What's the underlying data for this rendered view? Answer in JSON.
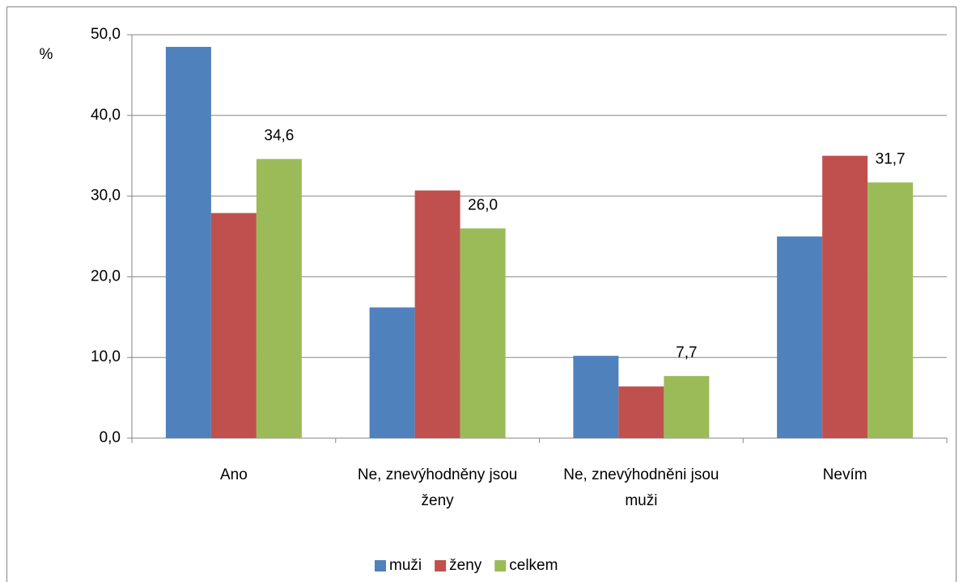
{
  "chart_data": {
    "type": "bar",
    "y_unit": "%",
    "categories": [
      "Ano",
      "Ne, znevýhodněny jsou ženy",
      "Ne, znevýhodněni jsou muži",
      "Nevím"
    ],
    "series": [
      {
        "name": "muži",
        "color": "#4f81bd",
        "values": [
          48.5,
          16.2,
          10.2,
          25.0
        ]
      },
      {
        "name": "ženy",
        "color": "#c0504d",
        "values": [
          27.9,
          30.7,
          6.4,
          35.0
        ]
      },
      {
        "name": "celkem",
        "color": "#9bbb59",
        "values": [
          34.6,
          26.0,
          7.7,
          31.7
        ],
        "value_labels": [
          "34,6",
          "26,0",
          "7,7",
          "31,7"
        ]
      }
    ],
    "ylim": [
      0,
      50
    ],
    "yticks": [
      {
        "value": 0,
        "label": "0,0"
      },
      {
        "value": 10,
        "label": "10,0"
      },
      {
        "value": 20,
        "label": "20,0"
      },
      {
        "value": 30,
        "label": "30,0"
      },
      {
        "value": 40,
        "label": "40,0"
      },
      {
        "value": 50,
        "label": "50,0"
      }
    ],
    "grid": true,
    "legend": "bottom"
  }
}
